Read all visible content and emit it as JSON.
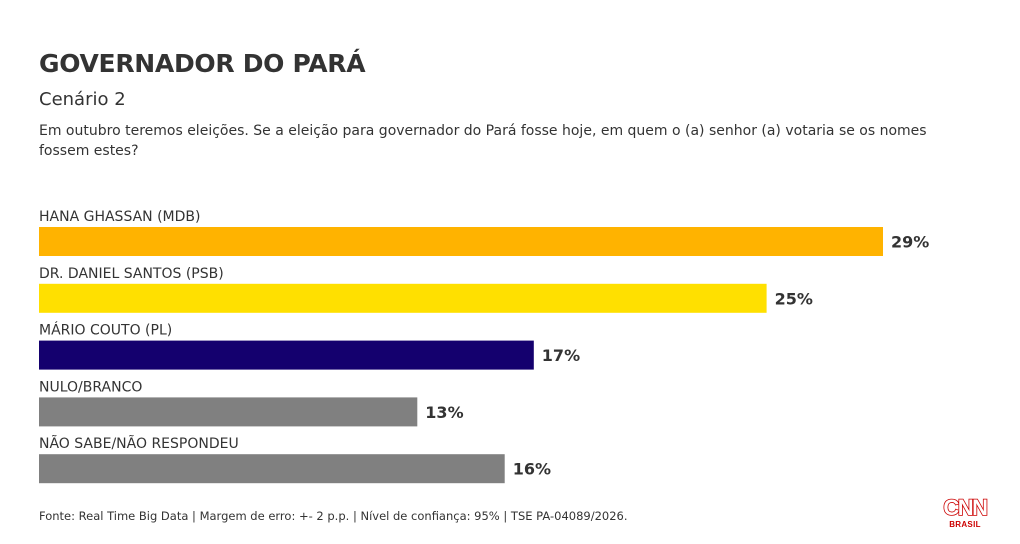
{
  "header": {
    "title": "GOVERNADOR DO PARÁ",
    "subtitle": "Cenário 2",
    "question": "Em outubro teremos eleições. Se a eleição para governador do Pará fosse hoje, em quem o (a) senhor (a) votaria se os nomes fossem estes?"
  },
  "footer": {
    "source": "Fonte: Real Time Big Data | Margem de erro: +- 2 p.p. | Nível de confiança: 95% | TSE PA-04089/2026."
  },
  "logo": {
    "name": "CNN",
    "sub": "BRASIL",
    "color": "#cc0000"
  },
  "chart_data": {
    "type": "bar",
    "orientation": "horizontal",
    "title": "GOVERNADOR DO PARÁ",
    "subtitle": "Cenário 2",
    "categories": [
      "HANA GHASSAN (MDB)",
      "DR. DANIEL SANTOS (PSB)",
      "MÁRIO COUTO (PL)",
      "NULO/BRANCO",
      "NÃO SABE/NÃO RESPONDEU"
    ],
    "values": [
      29,
      25,
      17,
      13,
      16
    ],
    "value_labels": [
      "29%",
      "25%",
      "17%",
      "13%",
      "16%"
    ],
    "colors": [
      "#ffb300",
      "#ffe000",
      "#14006e",
      "#808080",
      "#808080"
    ],
    "unit": "%",
    "xlim": [
      0,
      29
    ],
    "grid": false,
    "legend": "none"
  }
}
